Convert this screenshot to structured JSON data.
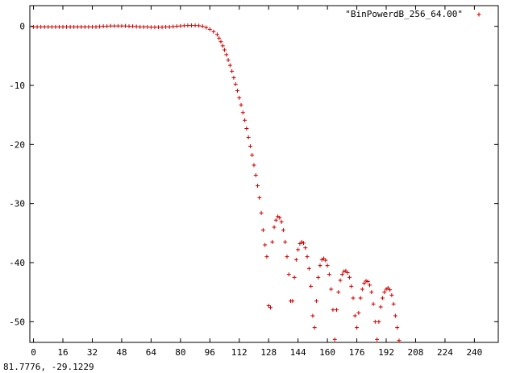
{
  "chart_data": {
    "type": "scatter",
    "xlim": [
      -2,
      253
    ],
    "ylim": [
      -53.5,
      3.5
    ],
    "x_ticks": [
      0,
      16,
      32,
      48,
      64,
      80,
      96,
      112,
      128,
      144,
      160,
      176,
      192,
      208,
      224,
      240
    ],
    "y_ticks": [
      0,
      -10,
      -20,
      -30,
      -40,
      -50
    ],
    "grid": false,
    "legend_position": "top-right",
    "series": [
      {
        "name": "\"BinPowerdB_256_64.00\"",
        "color": "#cc0000",
        "marker": "plus",
        "points": [
          [
            0,
            -0.1
          ],
          [
            2,
            -0.1
          ],
          [
            4,
            -0.1
          ],
          [
            6,
            -0.1
          ],
          [
            8,
            -0.1
          ],
          [
            10,
            -0.1
          ],
          [
            12,
            -0.1
          ],
          [
            14,
            -0.1
          ],
          [
            16,
            -0.1
          ],
          [
            18,
            -0.1
          ],
          [
            20,
            -0.1
          ],
          [
            22,
            -0.1
          ],
          [
            24,
            -0.1
          ],
          [
            26,
            -0.1
          ],
          [
            28,
            -0.1
          ],
          [
            30,
            -0.1
          ],
          [
            32,
            -0.1
          ],
          [
            34,
            -0.1
          ],
          [
            36,
            -0.05
          ],
          [
            38,
            0
          ],
          [
            40,
            0
          ],
          [
            42,
            0.05
          ],
          [
            44,
            0.05
          ],
          [
            46,
            0.05
          ],
          [
            48,
            0.05
          ],
          [
            50,
            0.05
          ],
          [
            52,
            0
          ],
          [
            54,
            0
          ],
          [
            56,
            -0.05
          ],
          [
            58,
            -0.1
          ],
          [
            60,
            -0.1
          ],
          [
            62,
            -0.1
          ],
          [
            64,
            -0.15
          ],
          [
            66,
            -0.15
          ],
          [
            68,
            -0.15
          ],
          [
            70,
            -0.15
          ],
          [
            72,
            -0.1
          ],
          [
            74,
            -0.1
          ],
          [
            76,
            -0.05
          ],
          [
            78,
            0
          ],
          [
            80,
            0.05
          ],
          [
            82,
            0.1
          ],
          [
            84,
            0.15
          ],
          [
            86,
            0.15
          ],
          [
            88,
            0.15
          ],
          [
            90,
            0.1
          ],
          [
            92,
            0
          ],
          [
            94,
            -0.2
          ],
          [
            96,
            -0.5
          ],
          [
            98,
            -0.9
          ],
          [
            100,
            -1.4
          ],
          [
            101,
            -2
          ],
          [
            102,
            -2.6
          ],
          [
            103,
            -3.3
          ],
          [
            104,
            -4
          ],
          [
            105,
            -4.8
          ],
          [
            106,
            -5.7
          ],
          [
            107,
            -6.6
          ],
          [
            108,
            -7.6
          ],
          [
            109,
            -8.7
          ],
          [
            110,
            -9.8
          ],
          [
            111,
            -10.9
          ],
          [
            112,
            -12.1
          ],
          [
            113,
            -13.3
          ],
          [
            114,
            -14.6
          ],
          [
            115,
            -15.9
          ],
          [
            116,
            -17.3
          ],
          [
            117,
            -18.8
          ],
          [
            118,
            -20.3
          ],
          [
            119,
            -21.8
          ],
          [
            120,
            -23.5
          ],
          [
            121,
            -25.2
          ],
          [
            122,
            -27
          ],
          [
            123,
            -29
          ],
          [
            124,
            -31.6
          ],
          [
            125,
            -34.5
          ],
          [
            126,
            -37
          ],
          [
            127,
            -39
          ],
          [
            128,
            -47.3
          ],
          [
            129,
            -47.6
          ],
          [
            130,
            -36.5
          ],
          [
            131,
            -34
          ],
          [
            132,
            -32.8
          ],
          [
            133,
            -32.2
          ],
          [
            134,
            -32.4
          ],
          [
            135,
            -33.1
          ],
          [
            136,
            -34.5
          ],
          [
            137,
            -36.5
          ],
          [
            138,
            -39
          ],
          [
            139,
            -42
          ],
          [
            140,
            -46.5
          ],
          [
            141,
            -46.5
          ],
          [
            142,
            -42.5
          ],
          [
            143,
            -39.5
          ],
          [
            144,
            -37.8
          ],
          [
            145,
            -36.8
          ],
          [
            146,
            -36.5
          ],
          [
            147,
            -36.7
          ],
          [
            148,
            -37.5
          ],
          [
            149,
            -39
          ],
          [
            150,
            -41
          ],
          [
            151,
            -44
          ],
          [
            152,
            -49
          ],
          [
            153,
            -51
          ],
          [
            154,
            -46.5
          ],
          [
            155,
            -42.5
          ],
          [
            156,
            -40.5
          ],
          [
            157,
            -39.5
          ],
          [
            158,
            -39.3
          ],
          [
            159,
            -39.6
          ],
          [
            160,
            -40.5
          ],
          [
            161,
            -42
          ],
          [
            162,
            -44.5
          ],
          [
            163,
            -48
          ],
          [
            164,
            -53
          ],
          [
            165,
            -48
          ],
          [
            166,
            -45
          ],
          [
            167,
            -43
          ],
          [
            168,
            -42
          ],
          [
            169,
            -41.5
          ],
          [
            170,
            -41.4
          ],
          [
            171,
            -41.7
          ],
          [
            172,
            -42.5
          ],
          [
            173,
            -44
          ],
          [
            174,
            -46
          ],
          [
            175,
            -49
          ],
          [
            176,
            -51
          ],
          [
            177,
            -48.5
          ],
          [
            178,
            -46
          ],
          [
            179,
            -44.5
          ],
          [
            180,
            -43.5
          ],
          [
            181,
            -43.1
          ],
          [
            182,
            -43.2
          ],
          [
            183,
            -43.8
          ],
          [
            184,
            -45
          ],
          [
            185,
            -47
          ],
          [
            186,
            -50
          ],
          [
            187,
            -53
          ],
          [
            188,
            -50
          ],
          [
            189,
            -47.5
          ],
          [
            190,
            -46
          ],
          [
            191,
            -45
          ],
          [
            192,
            -44.5
          ],
          [
            193,
            -44.3
          ],
          [
            194,
            -44.6
          ],
          [
            195,
            -45.5
          ],
          [
            196,
            -47
          ],
          [
            197,
            -49
          ],
          [
            198,
            -51
          ],
          [
            199,
            -53.2
          ]
        ]
      }
    ]
  },
  "status": {
    "coords": "81.7776, -29.1229"
  }
}
